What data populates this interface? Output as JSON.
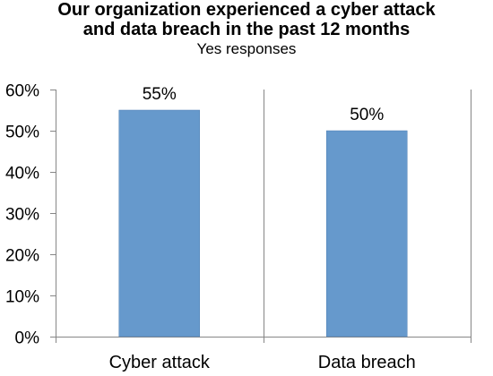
{
  "chart_data": {
    "type": "bar",
    "title": "Our organization experienced a cyber attack and data breach in the past 12 months",
    "title_lines": [
      "Our organization experienced a cyber attack",
      "and data breach in the past 12 months"
    ],
    "subtitle": "Yes responses",
    "categories": [
      "Cyber attack",
      "Data breach"
    ],
    "values": [
      55,
      50
    ],
    "data_labels": [
      "55%",
      "50%"
    ],
    "ylim": [
      0,
      60
    ],
    "yticks": [
      "0%",
      "10%",
      "20%",
      "30%",
      "40%",
      "50%",
      "60%"
    ],
    "xlabel": "",
    "ylabel": "",
    "grid": false,
    "colors": {
      "bar": "#6699cc",
      "bar_edge": "#4f7fb3",
      "axis": "#868686"
    }
  }
}
